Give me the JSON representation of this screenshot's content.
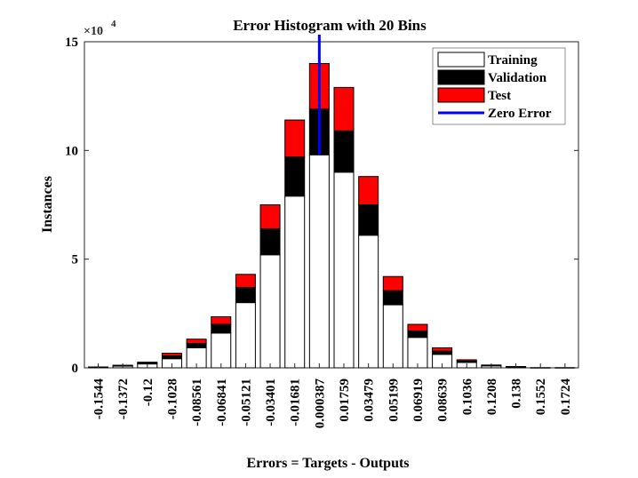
{
  "chart_data": {
    "type": "bar",
    "stacked": true,
    "title": "Error Histogram with 20 Bins",
    "xlabel": "Errors = Targets - Outputs",
    "ylabel": "Instances",
    "y_exponent_base": "×10",
    "y_exponent_power": "4",
    "ylim": [
      0,
      15
    ],
    "y_ticks": [
      "0",
      "5",
      "10",
      "15"
    ],
    "categories": [
      "-0.1544",
      "-0.1372",
      "-0.12",
      "-0.1028",
      "-0.08561",
      "-0.06841",
      "-0.05121",
      "-0.03401",
      "-0.01681",
      "0.000387",
      "0.01759",
      "0.03479",
      "0.05199",
      "0.06919",
      "0.08639",
      "0.1036",
      "0.1208",
      "0.138",
      "0.1552",
      "0.1724"
    ],
    "series": [
      {
        "name": "Training",
        "color": "#ffffff",
        "values": [
          0.02,
          0.08,
          0.18,
          0.42,
          0.92,
          1.6,
          3.0,
          5.2,
          7.9,
          9.8,
          9.0,
          6.1,
          2.9,
          1.4,
          0.62,
          0.25,
          0.09,
          0.04,
          0.01,
          0.01
        ]
      },
      {
        "name": "Validation",
        "color": "#000000",
        "values": [
          0.01,
          0.02,
          0.04,
          0.13,
          0.2,
          0.4,
          0.7,
          1.2,
          1.8,
          2.1,
          1.9,
          1.4,
          0.65,
          0.3,
          0.15,
          0.06,
          0.02,
          0.01,
          0.0,
          0.0
        ]
      },
      {
        "name": "Test",
        "color": "#ff0000",
        "values": [
          0.01,
          0.02,
          0.04,
          0.12,
          0.2,
          0.35,
          0.6,
          1.1,
          1.7,
          2.1,
          2.0,
          1.3,
          0.65,
          0.3,
          0.15,
          0.06,
          0.02,
          0.01,
          0.0,
          0.0
        ]
      }
    ],
    "zero_error": {
      "name": "Zero Error",
      "color": "#0000ff",
      "category": "0.000387"
    },
    "legend_position": "top-right",
    "grid": false
  }
}
